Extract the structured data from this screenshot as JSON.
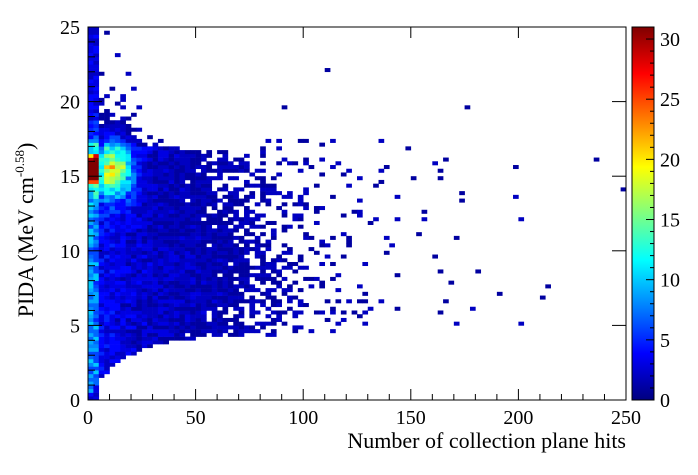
{
  "chart_data": {
    "type": "heatmap",
    "title": "",
    "xlabel": "Number of collection plane hits",
    "ylabel_main": "PIDA (MeV cm",
    "ylabel_sup": "-0.58",
    "ylabel_end": ")",
    "xlim": [
      0,
      250
    ],
    "ylim": [
      0,
      25
    ],
    "x_ticks": [
      0,
      50,
      100,
      150,
      200,
      250
    ],
    "y_ticks": [
      0,
      5,
      10,
      15,
      20,
      25
    ],
    "x_tick_labels": [
      "0",
      "50",
      "100",
      "150",
      "200",
      "250"
    ],
    "y_tick_labels": [
      "0",
      "5",
      "10",
      "15",
      "20",
      "25"
    ],
    "bin_width_x": 2.5,
    "bin_width_y": 0.25,
    "colorbar": {
      "range": [
        0,
        31
      ],
      "ticks": [
        0,
        5,
        10,
        15,
        20,
        25,
        30
      ],
      "tick_labels": [
        "0",
        "5",
        "10",
        "15",
        "20",
        "25",
        "30"
      ],
      "colormap": "jet"
    },
    "density_description": {
      "main_band_x_range": [
        0,
        85
      ],
      "main_band_y_range": [
        5,
        17.5
      ],
      "hotspot": {
        "x": 12,
        "y": 15.5,
        "value": 18
      },
      "peak_column": {
        "x": 1.5,
        "y": 15.5,
        "value": 30
      },
      "upper_tail_y_range": [
        17.5,
        25
      ]
    },
    "sample_points": [
      [
        212,
        6.8
      ],
      [
        236,
        16.0
      ],
      [
        198,
        15.5
      ],
      [
        176,
        19.7
      ],
      [
        182,
        8.5
      ],
      [
        168,
        7.8
      ],
      [
        190,
        7.0
      ],
      [
        110,
        22.2
      ],
      [
        64,
        25.0
      ],
      [
        92,
        19.5
      ],
      [
        160,
        9.6
      ],
      [
        172,
        10.8
      ],
      [
        156,
        12.6
      ],
      [
        150,
        14.9
      ],
      [
        165,
        16.2
      ]
    ]
  }
}
